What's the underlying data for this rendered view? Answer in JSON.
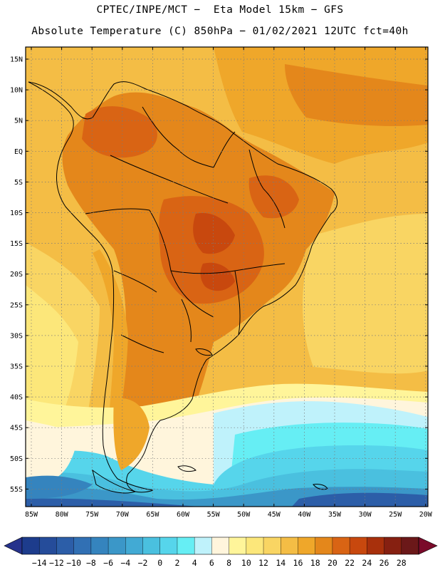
{
  "title": {
    "line1": "CPTEC/INPE/MCT −  Eta Model 15km − GFS",
    "line2": "Absolute Temperature (C) 850hPa − 01/02/2021 12UTC fct=40h"
  },
  "map": {
    "lat_ticks": [
      "15N",
      "10N",
      "5N",
      "EQ",
      "5S",
      "10S",
      "15S",
      "20S",
      "25S",
      "30S",
      "35S",
      "40S",
      "45S",
      "50S",
      "55S"
    ],
    "lon_ticks": [
      "85W",
      "80W",
      "75W",
      "70W",
      "65W",
      "60W",
      "55W",
      "50W",
      "45W",
      "40W",
      "35W",
      "30W",
      "25W",
      "20W"
    ]
  },
  "colorbar": {
    "labels": [
      "-14",
      "-12",
      "-10",
      "-8",
      "-6",
      "-4",
      "-2",
      "0",
      "2",
      "4",
      "6",
      "8",
      "10",
      "12",
      "14",
      "16",
      "18",
      "20",
      "22",
      "24",
      "26",
      "28"
    ],
    "colors": [
      "#1d3c8c",
      "#254c9a",
      "#2c5ea8",
      "#3170b4",
      "#3584be",
      "#3b97c8",
      "#42aad4",
      "#4ac0df",
      "#56d5eb",
      "#66eef4",
      "#bff2fb",
      "#fff5dc",
      "#fff59a",
      "#fce77a",
      "#f9d563",
      "#f4bd45",
      "#efa72a",
      "#e4871b",
      "#d96414",
      "#c8480e",
      "#a8300c",
      "#862011",
      "#6b1819"
    ],
    "left_arrow": "#26328c",
    "right_arrow": "#7a0a2a"
  }
}
